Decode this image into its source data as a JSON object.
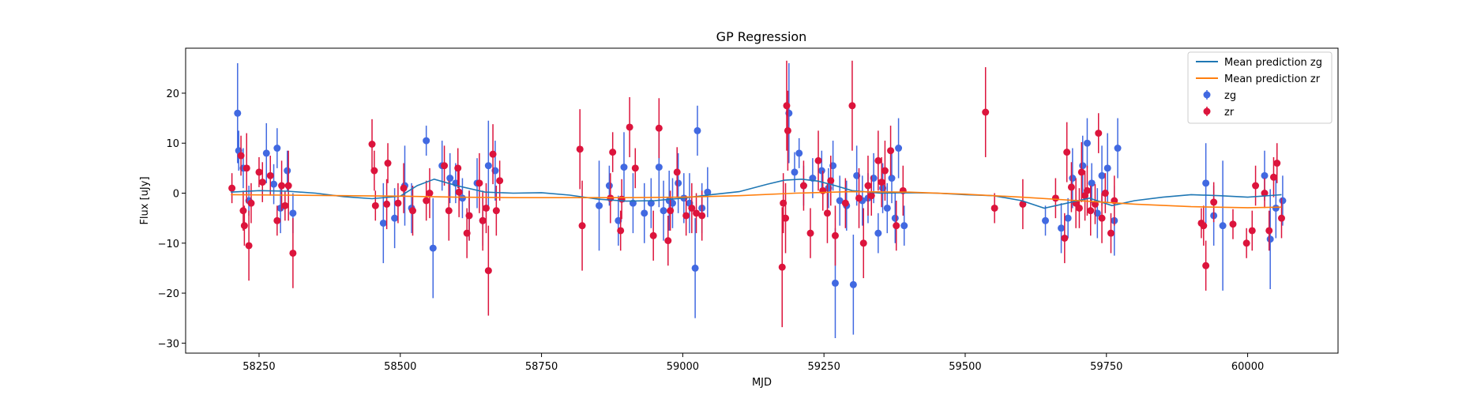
{
  "chart_data": {
    "type": "scatter",
    "title": "GP Regression",
    "xlabel": "MJD",
    "ylabel": "Flux [uJy]",
    "xlim": [
      58120,
      60160
    ],
    "ylim": [
      -32,
      29
    ],
    "x_ticks": [
      58250,
      58500,
      58750,
      59000,
      59250,
      59500,
      59750,
      60000
    ],
    "y_ticks": [
      -30,
      -20,
      -10,
      0,
      10,
      20
    ],
    "grid": false,
    "legend_position": "top-right",
    "colors": {
      "mean_zg": "#1f77b4",
      "mean_zr": "#ff7f0e",
      "zg": "#4169e1",
      "zr": "#dc143c"
    },
    "legend": [
      {
        "label": "Mean prediction zg",
        "kind": "line",
        "color": "#1f77b4"
      },
      {
        "label": "Mean prediction zr",
        "kind": "line",
        "color": "#ff7f0e"
      },
      {
        "label": "zg",
        "kind": "errorbar",
        "color": "#4169e1"
      },
      {
        "label": "zr",
        "kind": "errorbar",
        "color": "#dc143c"
      }
    ],
    "series": [
      {
        "name": "Mean prediction zg",
        "kind": "line",
        "color": "#1f77b4",
        "x": [
          58200,
          58250,
          58300,
          58350,
          58400,
          58450,
          58500,
          58530,
          58560,
          58600,
          58650,
          58700,
          58750,
          58800,
          58850,
          58900,
          58950,
          59000,
          59050,
          59100,
          59150,
          59180,
          59210,
          59240,
          59270,
          59300,
          59350,
          59400,
          59450,
          59500,
          59550,
          59600,
          59640,
          59680,
          59720,
          59760,
          59800,
          59850,
          59900,
          59950,
          60000,
          60050,
          60060
        ],
        "y": [
          0.2,
          0.5,
          0.4,
          0.0,
          -0.7,
          -1.1,
          -0.6,
          1.5,
          2.8,
          1.5,
          0.2,
          0.0,
          0.1,
          -0.4,
          -1.2,
          -1.6,
          -1.5,
          -1.0,
          -0.3,
          0.3,
          1.8,
          2.6,
          2.8,
          2.4,
          1.5,
          0.5,
          0.0,
          0.1,
          0.0,
          -0.3,
          -0.5,
          -1.5,
          -3.0,
          -2.0,
          -1.0,
          -2.5,
          -1.5,
          -0.8,
          -0.3,
          -0.5,
          -0.8,
          -0.4,
          -0.3
        ]
      },
      {
        "name": "Mean prediction zr",
        "kind": "line",
        "color": "#ff7f0e",
        "x": [
          58200,
          58300,
          58400,
          58500,
          58600,
          58700,
          58800,
          58900,
          59000,
          59100,
          59200,
          59300,
          59400,
          59500,
          59600,
          59700,
          59800,
          59900,
          60000,
          60060
        ],
        "y": [
          -0.3,
          -0.4,
          -0.5,
          -0.6,
          -0.8,
          -0.9,
          -0.9,
          -0.9,
          -0.8,
          -0.5,
          0.0,
          0.3,
          0.2,
          -0.2,
          -0.8,
          -1.5,
          -2.2,
          -2.7,
          -2.9,
          -2.8
        ]
      },
      {
        "name": "zg",
        "kind": "errorbar",
        "color": "#4169e1",
        "x": [
          58212,
          58214,
          58222,
          58232,
          58263,
          58276,
          58282,
          58288,
          58300,
          58310,
          58470,
          58490,
          58508,
          58520,
          58546,
          58558,
          58574,
          58588,
          58598,
          58610,
          58622,
          58636,
          58646,
          58656,
          58668,
          58852,
          58870,
          58886,
          58896,
          58912,
          58932,
          58944,
          58958,
          58966,
          58976,
          58982,
          58992,
          59002,
          59012,
          59022,
          59026,
          59034,
          59044,
          59188,
          59198,
          59206,
          59214,
          59230,
          59246,
          59258,
          59266,
          59270,
          59278,
          59290,
          59302,
          59308,
          59318,
          59328,
          59338,
          59346,
          59354,
          59362,
          59370,
          59376,
          59382,
          59392,
          59642,
          59670,
          59682,
          59690,
          59708,
          59716,
          59724,
          59734,
          59742,
          59752,
          59764,
          59770,
          59926,
          59940,
          59956,
          60030,
          60040,
          60050,
          60062
        ],
        "y": [
          16,
          8.5,
          5,
          -1.5,
          8,
          1.8,
          9,
          -3,
          4.5,
          -4,
          -6,
          -5,
          1.5,
          -3,
          10.5,
          -11,
          5.5,
          3,
          2,
          -1,
          -4.5,
          2,
          -5.5,
          5.5,
          4.5,
          -2.5,
          1.5,
          -5.5,
          5.2,
          -2,
          -4,
          -2,
          5.2,
          -3.5,
          -1.5,
          -2,
          2,
          -1,
          -2,
          -15,
          12.5,
          -3,
          0.2,
          16,
          4.2,
          8,
          1.5,
          3,
          4.5,
          1,
          5.5,
          -18,
          -1.5,
          -2.5,
          -18.3,
          3.5,
          -1.5,
          -1,
          3,
          -8,
          1,
          -3,
          3,
          -5,
          9,
          -6.5,
          -5.5,
          -7,
          -5,
          3,
          5.5,
          10,
          2,
          -4,
          3.5,
          5,
          -5.5,
          9,
          2,
          -4.5,
          -6.5,
          3.5,
          -9.2,
          -3,
          -1.5
        ],
        "err": [
          10,
          4,
          4,
          3,
          6,
          4,
          4,
          5,
          4,
          4,
          8,
          6,
          8,
          5,
          3,
          10,
          5,
          5,
          4,
          4,
          5,
          5,
          5,
          9,
          6,
          9,
          4,
          5,
          7,
          6,
          6,
          5,
          8,
          6,
          6,
          5,
          6,
          5,
          6,
          10,
          5,
          5,
          5,
          10,
          4,
          3,
          4,
          4,
          4,
          4,
          5,
          11,
          5,
          5,
          10,
          6,
          5,
          5,
          5,
          4,
          5,
          5,
          5,
          5,
          6,
          4,
          3,
          5,
          4,
          6,
          6,
          5,
          4,
          5,
          6,
          7,
          7,
          6,
          8,
          6,
          13,
          5,
          10,
          6,
          5
        ]
      },
      {
        "name": "zr",
        "kind": "errorbar",
        "color": "#dc143c",
        "x": [
          58202,
          58218,
          58222,
          58224,
          58228,
          58232,
          58236,
          58250,
          58256,
          58270,
          58282,
          58290,
          58296,
          58302,
          58310,
          58450,
          58454,
          58456,
          58476,
          58478,
          58496,
          58506,
          58522,
          58546,
          58552,
          58578,
          58586,
          58602,
          58604,
          58618,
          58622,
          58640,
          58646,
          58652,
          58656,
          58664,
          58670,
          58676,
          58818,
          58822,
          58872,
          58876,
          58890,
          58892,
          58906,
          58916,
          58948,
          58958,
          58974,
          58978,
          58990,
          59006,
          59016,
          59024,
          59034,
          59176,
          59178,
          59182,
          59184,
          59186,
          59214,
          59226,
          59240,
          59248,
          59256,
          59262,
          59270,
          59288,
          59300,
          59312,
          59320,
          59328,
          59334,
          59346,
          59352,
          59358,
          59368,
          59378,
          59390,
          59536,
          59552,
          59602,
          59660,
          59676,
          59680,
          59688,
          59696,
          59702,
          59706,
          59712,
          59716,
          59722,
          59730,
          59736,
          59742,
          59748,
          59758,
          59764,
          59918,
          59922,
          59926,
          59940,
          59974,
          59998,
          60008,
          60014,
          60030,
          60038,
          60046,
          60052,
          60060
        ],
        "y": [
          1,
          7.5,
          -3.5,
          -6.5,
          5,
          -10.5,
          -2,
          4.2,
          2.2,
          3.5,
          -5.5,
          1.5,
          -2.5,
          1.5,
          -12,
          9.8,
          4.5,
          -2.5,
          -2.2,
          6,
          -2,
          1,
          -3.5,
          -1.5,
          0,
          5.5,
          -3.5,
          5,
          0.2,
          -8,
          -4.5,
          2,
          -5.5,
          -3,
          -15.5,
          7.8,
          -3.5,
          2.5,
          8.8,
          -6.5,
          -1,
          8.2,
          -7.5,
          -1.2,
          13.2,
          5,
          -8.5,
          13,
          -9.5,
          -3.5,
          4.2,
          -4.5,
          -3,
          -4,
          -4.5,
          -14.8,
          -2,
          -5,
          17.5,
          12.5,
          1.5,
          -8,
          6.5,
          0.5,
          -4,
          2.5,
          -8.5,
          -2,
          17.5,
          -1,
          -10,
          1.5,
          -0.5,
          6.5,
          2.2,
          4.5,
          8.5,
          -6.5,
          0.5,
          16.2,
          -3,
          -2.2,
          -1,
          -9,
          8.2,
          1.2,
          -2,
          -3,
          4.2,
          -0.5,
          0.5,
          -3.5,
          -2.2,
          12,
          -5,
          0,
          -8,
          -1.5,
          -6,
          -6.5,
          -14.5,
          -1.8,
          -6.2,
          -10,
          -7.5,
          1.5,
          0,
          -7.5,
          3.2,
          6,
          -5
        ],
        "err": [
          3,
          4,
          4,
          4,
          7,
          7,
          4,
          3,
          4,
          4,
          3,
          5,
          3,
          7,
          7,
          5,
          4,
          3,
          5,
          4,
          4,
          5,
          5,
          4,
          5,
          4,
          6,
          4,
          5,
          5,
          5,
          6,
          6,
          5,
          9,
          6,
          5,
          4,
          8,
          9,
          5,
          4,
          4,
          4,
          6,
          4,
          5,
          6,
          5,
          4,
          5,
          4,
          5,
          4,
          5,
          12,
          6,
          7,
          9,
          8,
          5,
          5,
          6,
          4,
          6,
          5,
          6,
          5,
          9,
          6,
          7,
          6,
          4,
          6,
          5,
          6,
          5,
          5,
          5,
          9,
          3,
          5,
          4,
          5,
          6,
          5,
          5,
          4,
          6,
          5,
          5,
          5,
          4,
          4,
          5,
          4,
          4,
          5,
          3,
          4,
          5,
          4,
          3,
          3,
          4,
          4,
          3,
          4,
          4,
          4,
          4
        ]
      }
    ]
  }
}
